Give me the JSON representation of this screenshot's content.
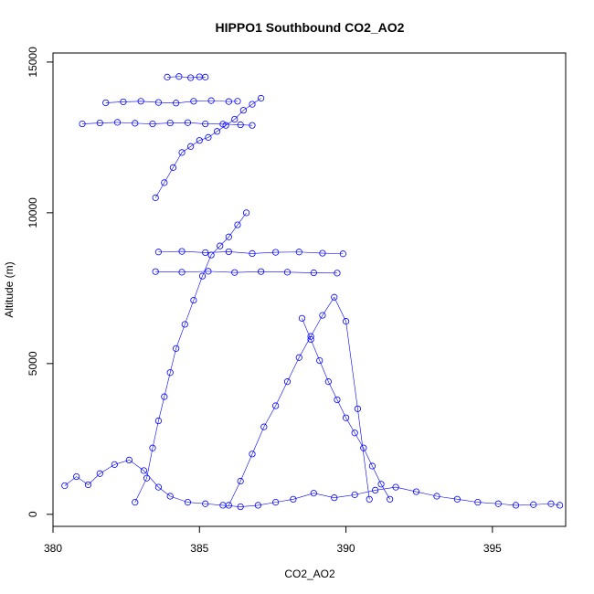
{
  "chart_data": {
    "type": "scatter",
    "title": "HIPPO1 Southbound CO2_AO2",
    "xlabel": "CO2_AO2",
    "ylabel": "Altitude (m)",
    "xlim": [
      380,
      397.5
    ],
    "ylim": [
      -400,
      15300
    ],
    "xticks": [
      380,
      385,
      390,
      395
    ],
    "yticks": [
      0,
      5000,
      10000,
      15000
    ],
    "marker": "open-circle",
    "connected_lines": true,
    "grid": false,
    "color": "#0000ff",
    "series": [
      {
        "x": [
          380.4,
          380.8,
          381.2,
          381.6,
          382.1,
          382.6,
          383.1,
          383.6,
          384.0,
          384.6,
          385.2,
          385.8,
          386.4,
          387.0,
          387.6,
          388.2,
          388.9,
          389.6,
          390.3,
          391.0,
          391.7,
          392.4,
          393.1,
          393.8,
          394.5,
          395.2,
          395.8,
          396.4,
          397.0,
          397.3
        ],
        "y": [
          950,
          1250,
          980,
          1350,
          1650,
          1800,
          1450,
          900,
          600,
          400,
          350,
          300,
          250,
          300,
          400,
          500,
          700,
          550,
          650,
          800,
          900,
          750,
          600,
          500,
          400,
          350,
          300,
          320,
          350,
          300
        ]
      },
      {
        "x": [
          382.8,
          383.2,
          383.4,
          383.6,
          383.8,
          384.0,
          384.2,
          384.5,
          384.8,
          385.1,
          385.4,
          385.7,
          386.0,
          386.3,
          386.6
        ],
        "y": [
          400,
          1200,
          2200,
          3100,
          3900,
          4700,
          5500,
          6300,
          7100,
          7900,
          8600,
          8900,
          9200,
          9600,
          10000
        ]
      },
      {
        "x": [
          383.5,
          383.8,
          384.1,
          384.4,
          384.7,
          385.0,
          385.3,
          385.6,
          385.9,
          386.2,
          386.5,
          386.8,
          387.1
        ],
        "y": [
          10500,
          11000,
          11500,
          12000,
          12200,
          12400,
          12500,
          12700,
          12900,
          13100,
          13400,
          13600,
          13800
        ]
      },
      {
        "x": [
          381.0,
          381.6,
          382.2,
          382.8,
          383.4,
          384.0,
          384.6,
          385.2,
          385.8,
          386.4,
          386.8
        ],
        "y": [
          12950,
          12980,
          13000,
          12970,
          12950,
          12980,
          12990,
          12950,
          12940,
          12920,
          12900
        ]
      },
      {
        "x": [
          381.8,
          382.4,
          383.0,
          383.6,
          384.2,
          384.8,
          385.4,
          386.0,
          386.3
        ],
        "y": [
          13650,
          13680,
          13700,
          13660,
          13640,
          13700,
          13720,
          13690,
          13700
        ]
      },
      {
        "x": [
          383.9,
          384.3,
          384.7,
          385.0,
          385.2
        ],
        "y": [
          14500,
          14520,
          14480,
          14510,
          14500
        ]
      },
      {
        "x": [
          383.6,
          384.4,
          385.2,
          386.0,
          386.8,
          387.6,
          388.4,
          389.2,
          389.9
        ],
        "y": [
          8700,
          8720,
          8680,
          8710,
          8650,
          8690,
          8700,
          8660,
          8640
        ]
      },
      {
        "x": [
          383.5,
          384.4,
          385.3,
          386.2,
          387.1,
          388.0,
          388.9,
          389.7
        ],
        "y": [
          8050,
          8030,
          8060,
          8020,
          8050,
          8030,
          8010,
          8000
        ]
      },
      {
        "x": [
          386.0,
          386.4,
          386.8,
          387.2,
          387.6,
          388.0,
          388.4,
          388.8,
          389.2,
          389.6,
          390.0,
          390.4,
          390.8
        ],
        "y": [
          300,
          1100,
          2000,
          2900,
          3600,
          4400,
          5200,
          5900,
          6600,
          7200,
          6400,
          3500,
          500
        ]
      },
      {
        "x": [
          388.5,
          388.8,
          389.1,
          389.4,
          389.7,
          390.0,
          390.3,
          390.6,
          390.9,
          391.2,
          391.5
        ],
        "y": [
          6500,
          5800,
          5100,
          4400,
          3800,
          3200,
          2700,
          2200,
          1600,
          1000,
          500
        ]
      }
    ]
  }
}
